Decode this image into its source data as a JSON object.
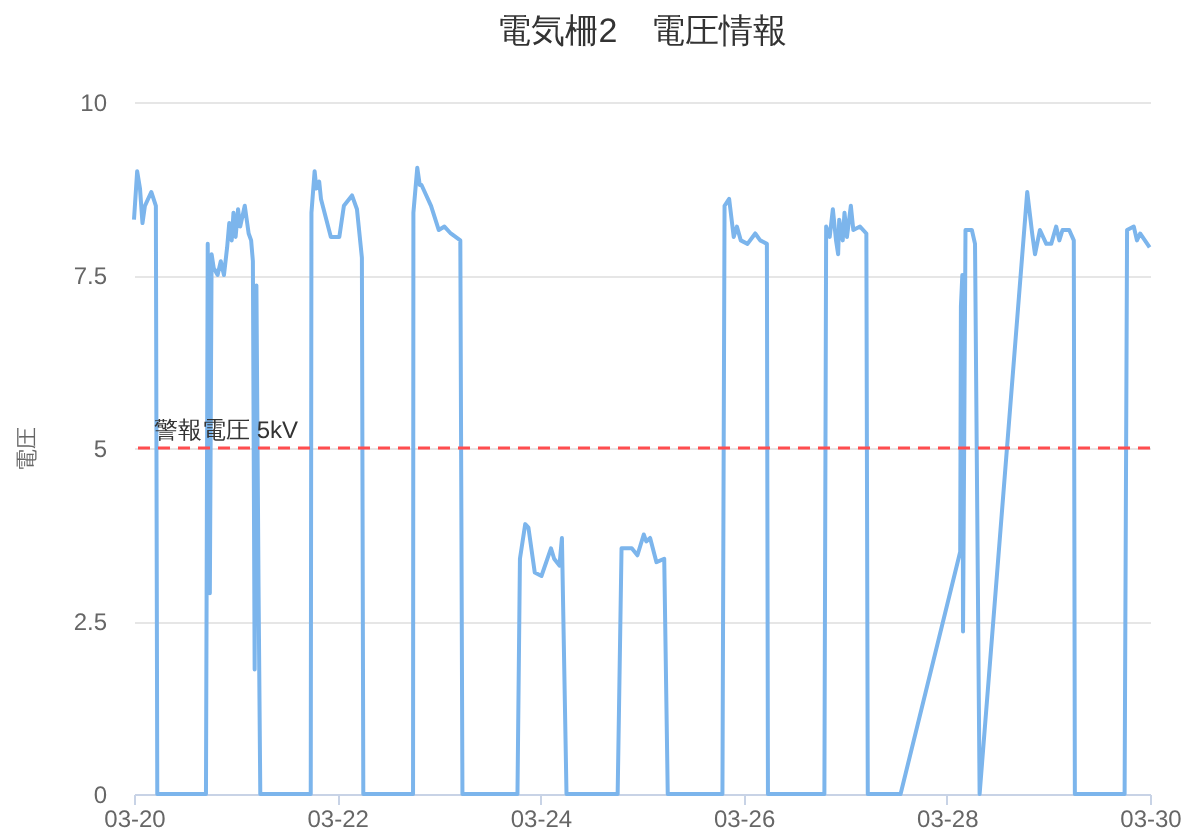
{
  "chart_data": {
    "type": "line",
    "title": "電気柵2　電圧情報",
    "ylabel": "電圧",
    "x": [
      "--03-20T00:00",
      "--03-20T00:45",
      "--03-20T01:25",
      "--03-20T02:00",
      "--03-20T02:35",
      "--03-20T04:05",
      "--03-20T05:10",
      "--03-20T05:30",
      "--03-20T17:00",
      "--03-20T17:25",
      "--03-20T17:55",
      "--03-20T18:20",
      "--03-20T18:50",
      "--03-20T19:45",
      "--03-20T20:30",
      "--03-20T21:15",
      "--03-20T22:00",
      "--03-20T22:30",
      "--03-20T23:05",
      "--03-20T23:30",
      "--03-21T00:00",
      "--03-21T00:35",
      "--03-21T01:05",
      "--03-21T02:10",
      "--03-21T03:05",
      "--03-21T03:40",
      "--03-21T04:05",
      "--03-21T04:30",
      "--03-21T04:55",
      "--03-21T05:25",
      "--03-21T05:50",
      "--03-21T17:45",
      "--03-21T17:55",
      "--03-21T18:40",
      "--03-21T19:05",
      "--03-21T19:45",
      "--03-21T20:10",
      "--03-21T22:30",
      "--03-22T00:30",
      "--03-22T01:35",
      "--03-22T03:30",
      "--03-22T04:40",
      "--03-22T05:50",
      "--03-22T06:10",
      "--03-22T17:55",
      "--03-22T18:00",
      "--03-22T18:55",
      "--03-22T19:30",
      "--03-22T19:55",
      "--03-22T22:10",
      "--03-23T00:00",
      "--03-23T01:20",
      "--03-23T02:50",
      "--03-23T05:05",
      "--03-23T05:35",
      "--03-23T18:35",
      "--03-23T19:10",
      "--03-23T20:25",
      "--03-23T21:10",
      "--03-23T22:40",
      "--03-24T00:15",
      "--03-24T02:30",
      "--03-24T03:15",
      "--03-24T04:30",
      "--03-24T05:05",
      "--03-24T06:10",
      "--03-24T18:15",
      "--03-24T19:10",
      "--03-24T21:35",
      "--03-24T22:55",
      "--03-25T00:25",
      "--03-25T01:00",
      "--03-25T01:55",
      "--03-25T03:25",
      "--03-25T05:15",
      "--03-25T06:05",
      "--03-25T19:00",
      "--03-25T19:30",
      "--03-25T20:35",
      "--03-25T21:40",
      "--03-25T22:25",
      "--03-25T23:20",
      "--03-26T00:55",
      "--03-26T02:45",
      "--03-26T03:55",
      "--03-26T05:30",
      "--03-26T05:45",
      "--03-26T19:05",
      "--03-26T19:30",
      "--03-26T20:20",
      "--03-26T21:05",
      "--03-26T21:50",
      "--03-26T22:20",
      "--03-26T22:35",
      "--03-26T23:25",
      "--03-26T23:50",
      "--03-27T00:25",
      "--03-27T01:20",
      "--03-27T01:55",
      "--03-27T03:30",
      "--03-27T05:00",
      "--03-27T05:20",
      "--03-27T13:05",
      "--03-28T03:10",
      "--03-28T03:20",
      "--03-28T03:40",
      "--03-28T03:50",
      "--03-28T04:25",
      "--03-28T05:55",
      "--03-28T06:40",
      "--03-28T07:45",
      "--03-28T19:00",
      "--03-28T20:10",
      "--03-28T20:50",
      "--03-28T22:00",
      "--03-28T23:30",
      "--03-29T00:40",
      "--03-29T01:50",
      "--03-29T02:35",
      "--03-29T03:20",
      "--03-29T04:55",
      "--03-29T06:00",
      "--03-29T06:15",
      "--03-29T18:00",
      "--03-29T18:35",
      "--03-29T20:10",
      "--03-29T20:55",
      "--03-29T21:40",
      "--03-29T23:55"
    ],
    "series": [
      {
        "color": "#7cb5ec",
        "values": [
          8.3,
          9.0,
          8.75,
          8.25,
          8.5,
          8.7,
          8.5,
          0,
          0,
          7.95,
          2.9,
          7.8,
          7.6,
          7.5,
          7.7,
          7.5,
          7.9,
          8.25,
          8.0,
          8.4,
          8.05,
          8.45,
          8.2,
          8.5,
          8.1,
          8.0,
          7.7,
          1.8,
          7.35,
          3.0,
          0,
          0,
          8.4,
          9.0,
          8.75,
          8.85,
          8.6,
          8.05,
          8.05,
          8.5,
          8.65,
          8.45,
          7.75,
          0,
          0,
          8.4,
          9.05,
          8.8,
          8.8,
          8.5,
          8.15,
          8.2,
          8.1,
          8.0,
          0,
          0,
          3.4,
          3.9,
          3.85,
          3.2,
          3.15,
          3.55,
          3.4,
          3.3,
          3.7,
          0,
          0,
          3.55,
          3.55,
          3.45,
          3.75,
          3.65,
          3.7,
          3.35,
          3.4,
          0,
          0,
          8.5,
          8.6,
          8.05,
          8.2,
          8.0,
          7.95,
          8.1,
          8.0,
          7.95,
          0,
          0,
          8.2,
          8.05,
          8.45,
          8.0,
          7.8,
          8.3,
          8.0,
          8.4,
          8.05,
          8.5,
          8.15,
          8.2,
          8.1,
          0,
          0,
          3.5,
          7.05,
          7.5,
          2.35,
          8.15,
          8.15,
          7.95,
          0,
          8.7,
          8.1,
          7.8,
          8.15,
          7.95,
          7.95,
          8.2,
          8.0,
          8.15,
          8.15,
          8.0,
          0,
          0,
          8.15,
          8.2,
          8.0,
          8.1,
          7.9
        ]
      }
    ],
    "xlim": [
      "--03-20",
      "--03-30"
    ],
    "xticks": [
      {
        "value": "--03-20",
        "label": "03-20"
      },
      {
        "value": "--03-22",
        "label": "03-22"
      },
      {
        "value": "--03-24",
        "label": "03-24"
      },
      {
        "value": "--03-26",
        "label": "03-26"
      },
      {
        "value": "--03-28",
        "label": "03-28"
      },
      {
        "value": "--03-30",
        "label": "03-30"
      }
    ],
    "ylim": [
      0,
      10
    ],
    "yticks": [
      0,
      2.5,
      5,
      7.5,
      10
    ],
    "grid": "y",
    "ref_lines": [
      {
        "axis": "y",
        "value": 5,
        "label": "警報電圧 5kV",
        "color": "#ff4d4f",
        "line_style": "dashed"
      }
    ]
  }
}
